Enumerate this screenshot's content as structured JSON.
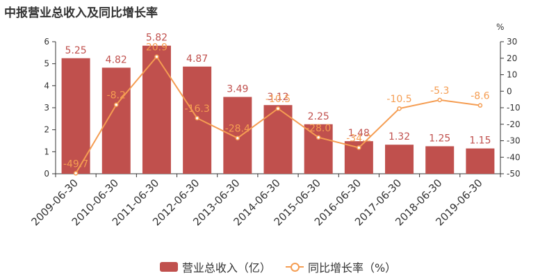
{
  "title": "中报营业总收入及同比增长率",
  "colors": {
    "bar": "#c0504d",
    "line": "#f59d52",
    "axis": "#333333"
  },
  "legend": {
    "bar_label": "营业总收入（亿）",
    "line_label": "同比增长率（%）"
  },
  "chart_data": {
    "type": "bar",
    "categories": [
      "2009-06-30",
      "2010-06-30",
      "2011-06-30",
      "2012-06-30",
      "2013-06-30",
      "2014-06-30",
      "2015-06-30",
      "2016-06-30",
      "2017-06-30",
      "2018-06-30",
      "2019-06-30"
    ],
    "series": [
      {
        "name": "营业总收入（亿）",
        "type": "bar",
        "axis": "left",
        "values": [
          5.25,
          4.82,
          5.82,
          4.87,
          3.49,
          3.12,
          2.25,
          1.48,
          1.32,
          1.25,
          1.15
        ]
      },
      {
        "name": "同比增长率（%）",
        "type": "line",
        "axis": "right",
        "values": [
          -49.7,
          -8.2,
          20.9,
          -16.3,
          -28.4,
          -10.5,
          -28.0,
          -34.2,
          -10.5,
          -5.3,
          -8.6
        ]
      }
    ],
    "title": "中报营业总收入及同比增长率",
    "y_left": {
      "ylim": [
        0,
        6
      ],
      "ticks": [
        0,
        1,
        2,
        3,
        4,
        5,
        6
      ]
    },
    "y_right": {
      "unit": "%",
      "ylim": [
        -50,
        30
      ],
      "ticks": [
        30,
        20,
        10,
        0,
        -10,
        -20,
        -30,
        -40,
        -50
      ]
    },
    "legend_position": "bottom",
    "grid": false
  }
}
